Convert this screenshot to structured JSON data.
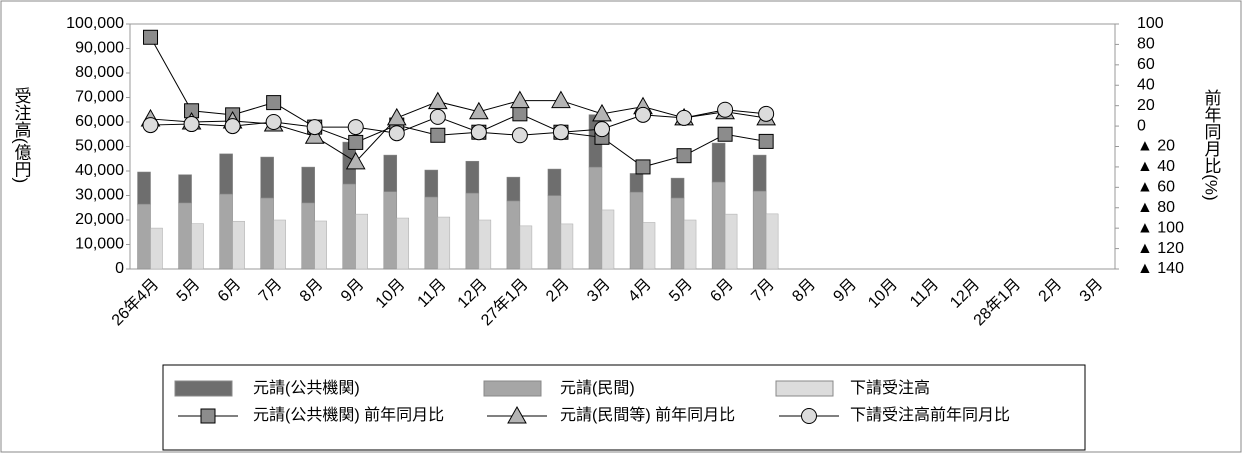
{
  "chart_data": {
    "type": "bar",
    "y_label": "受注高(億円)",
    "y2_label": "前年同月比(%)",
    "categories": [
      "26年4月",
      "5月",
      "6月",
      "7月",
      "8月",
      "9月",
      "10月",
      "11月",
      "12月",
      "27年1月",
      "2月",
      "3月",
      "4月",
      "5月",
      "6月",
      "7月",
      "8月",
      "9月",
      "10月",
      "11月",
      "12月",
      "28年1月",
      "2月",
      "3月"
    ],
    "ylim": [
      0,
      100000
    ],
    "yticks": [
      0,
      {
        "value": 10000,
        "label": "10,000"
      },
      {
        "value": 20000,
        "label": "20,000"
      },
      {
        "value": 30000,
        "label": "30,000"
      },
      {
        "value": 40000,
        "label": "40,000"
      },
      {
        "value": 50000,
        "label": "50,000"
      },
      {
        "value": 60000,
        "label": "60,000"
      },
      {
        "value": 70000,
        "label": "70,000"
      },
      {
        "value": 80000,
        "label": "80,000"
      },
      {
        "value": 90000,
        "label": "90,000"
      },
      {
        "value": 100000,
        "label": "100,000"
      }
    ],
    "y2lim": [
      -140,
      100
    ],
    "y2ticks": [
      100,
      80,
      60,
      40,
      20,
      0,
      {
        "value": -20,
        "label": "▲ 20"
      },
      {
        "value": -40,
        "label": "▲ 40"
      },
      {
        "value": -60,
        "label": "▲ 60"
      },
      {
        "value": -80,
        "label": "▲ 80"
      },
      {
        "value": -100,
        "label": "▲ 100"
      },
      {
        "value": -120,
        "label": "▲ 120"
      },
      {
        "value": -140,
        "label": "▲ 140"
      }
    ],
    "series": [
      {
        "name": "元請(公共機関)",
        "type": "bar",
        "stack": "a",
        "color": "#6e6e6e",
        "values": [
          13100,
          11500,
          16400,
          16700,
          14600,
          17100,
          14900,
          11000,
          13000,
          9700,
          10800,
          21400,
          7600,
          8100,
          15900,
          14700,
          null,
          null,
          null,
          null,
          null,
          null,
          null,
          null
        ]
      },
      {
        "name": "元請(民間)",
        "type": "bar",
        "stack": "a",
        "color": "#a6a6a6",
        "values": [
          26500,
          27000,
          30600,
          29000,
          27000,
          34700,
          31600,
          29400,
          31000,
          27800,
          30000,
          41600,
          31400,
          29000,
          35500,
          31800,
          null,
          null,
          null,
          null,
          null,
          null,
          null,
          null
        ]
      },
      {
        "name": "下請受注高",
        "type": "bar",
        "color": "#dcdcdc",
        "values": [
          16700,
          18500,
          19500,
          20000,
          19600,
          22400,
          20800,
          21200,
          20000,
          17600,
          18400,
          24100,
          19000,
          20000,
          22400,
          22500,
          null,
          null,
          null,
          null,
          null,
          null,
          null,
          null
        ]
      },
      {
        "name": "元請(公共機関) 前年同月比",
        "type": "line",
        "axis": "y2",
        "marker": "square",
        "color": "#8c8c8c",
        "values": [
          87,
          15,
          11,
          23,
          -1,
          -16,
          1,
          -9,
          -6,
          12,
          -6,
          -11,
          -40,
          -29,
          -8,
          -15,
          null,
          null,
          null,
          null,
          null,
          null,
          null,
          null
        ]
      },
      {
        "name": "元請(民間等) 前年同月比",
        "type": "line",
        "axis": "y2",
        "marker": "triangle",
        "color": "#b4b4b4",
        "values": [
          7,
          4,
          5,
          2,
          -10,
          -35,
          8,
          24,
          14,
          25,
          25,
          12,
          19,
          8,
          14,
          8,
          null,
          null,
          null,
          null,
          null,
          null,
          null,
          null
        ]
      },
      {
        "name": "下請受注高前年同月比",
        "type": "line",
        "axis": "y2",
        "marker": "circle",
        "color": "#dcdcdc",
        "values": [
          1,
          2,
          0,
          4,
          -1,
          -1,
          -7,
          9,
          -6,
          -9,
          -6,
          -3,
          11,
          8,
          16,
          12,
          null,
          null,
          null,
          null,
          null,
          null,
          null,
          null
        ]
      }
    ]
  }
}
